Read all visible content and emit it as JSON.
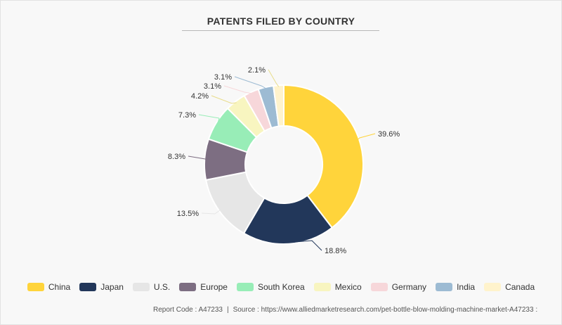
{
  "footer": {
    "report_code": "Report Code : A47233",
    "separator": "|",
    "source": "Source : https://www.alliedmarketresearch.com/pet-bottle-blow-molding-machine-market-A47233 :"
  },
  "chart_data": {
    "type": "pie",
    "donut": true,
    "title": "PATENTS FILED BY COUNTRY",
    "legend_position": "bottom",
    "slices": [
      {
        "label": "China",
        "value": 39.6,
        "value_label": "39.6%",
        "color": "#FFD43B"
      },
      {
        "label": "Japan",
        "value": 18.8,
        "value_label": "18.8%",
        "color": "#22375A"
      },
      {
        "label": "U.S.",
        "value": 13.5,
        "value_label": "13.5%",
        "color": "#E6E6E6"
      },
      {
        "label": "Europe",
        "value": 8.3,
        "value_label": "8.3%",
        "color": "#7D6E82"
      },
      {
        "label": "South Korea",
        "value": 7.3,
        "value_label": "7.3%",
        "color": "#98EDB7"
      },
      {
        "label": "Mexico",
        "value": 4.2,
        "value_label": "4.2%",
        "color": "#F8F5C0"
      },
      {
        "label": "Germany",
        "value": 3.1,
        "value_label": "3.1%",
        "color": "#F7D7DA"
      },
      {
        "label": "India",
        "value": 3.1,
        "value_label": "3.1%",
        "color": "#9DBBD3"
      },
      {
        "label": "Canada",
        "value": 2.1,
        "value_label": "2.1%",
        "color": "#FFF3CC"
      }
    ]
  }
}
